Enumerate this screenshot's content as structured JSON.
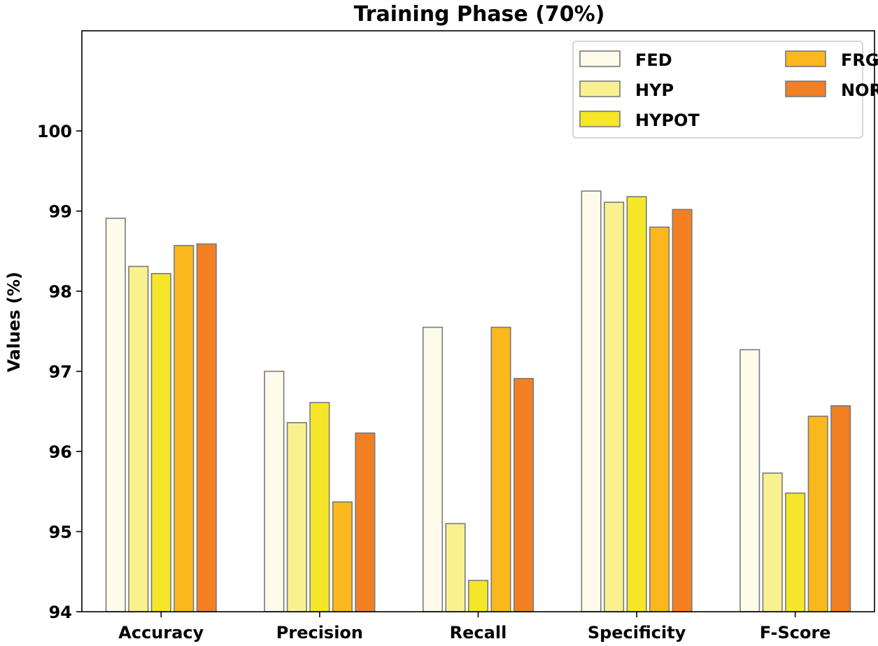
{
  "chart_data": {
    "type": "bar",
    "title": "Training Phase (70%)",
    "xlabel": "",
    "ylabel": "Values (%)",
    "ylim": [
      94,
      101.25
    ],
    "yticks": [
      94,
      95,
      96,
      97,
      98,
      99,
      100
    ],
    "grid": false,
    "legend_position": "top-right",
    "categories": [
      "Accuracy",
      "Precision",
      "Recall",
      "Specificity",
      "F-Score"
    ],
    "series": [
      {
        "name": "FED",
        "color": "#fffbeb",
        "values": [
          98.91,
          97.0,
          97.55,
          99.25,
          97.27
        ]
      },
      {
        "name": "HYP",
        "color": "#f8f18e",
        "values": [
          98.31,
          96.36,
          95.1,
          99.11,
          95.73
        ]
      },
      {
        "name": "HYPOT",
        "color": "#f5e629",
        "values": [
          98.22,
          96.61,
          94.39,
          99.18,
          95.48
        ]
      },
      {
        "name": "FRG",
        "color": "#fbb81d",
        "values": [
          98.57,
          95.37,
          97.55,
          98.8,
          96.44
        ]
      },
      {
        "name": "NOR",
        "color": "#f28023",
        "values": [
          98.59,
          96.23,
          96.91,
          99.02,
          96.57
        ]
      }
    ]
  }
}
